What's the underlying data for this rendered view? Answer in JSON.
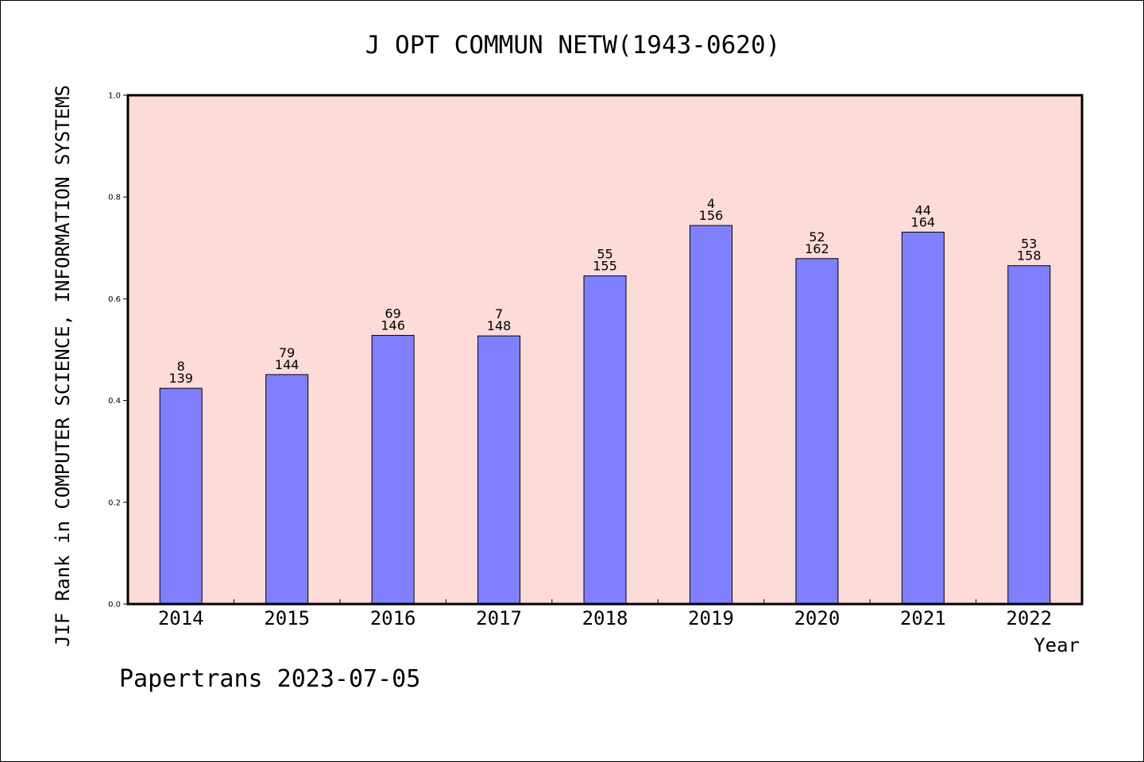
{
  "chart_data": {
    "type": "bar",
    "title": "J OPT COMMUN NETW(1943-0620)",
    "ylabel": "JIF Rank in COMPUTER SCIENCE, INFORMATION SYSTEMS",
    "xlabel": "Year",
    "ylim": [
      0,
      1.0
    ],
    "yticks": [
      "0.0",
      "0.2",
      "0.4",
      "0.6",
      "0.8",
      "1.0"
    ],
    "categories": [
      "2014",
      "2015",
      "2016",
      "2017",
      "2018",
      "2019",
      "2020",
      "2021",
      "2022"
    ],
    "values": [
      0.424,
      0.451,
      0.528,
      0.527,
      0.645,
      0.744,
      0.679,
      0.731,
      0.665
    ],
    "bar_labels_top": [
      "8",
      "79",
      "69",
      "7",
      "55",
      "4",
      "52",
      "44",
      "53"
    ],
    "bar_labels_bottom": [
      "139",
      "144",
      "146",
      "148",
      "155",
      "156",
      "162",
      "164",
      "158"
    ],
    "grid": false,
    "colors": {
      "plot_background": "#fddbd8",
      "bar": "#8080ff",
      "axis": "#000000"
    }
  },
  "footer": "Papertrans 2023-07-05"
}
